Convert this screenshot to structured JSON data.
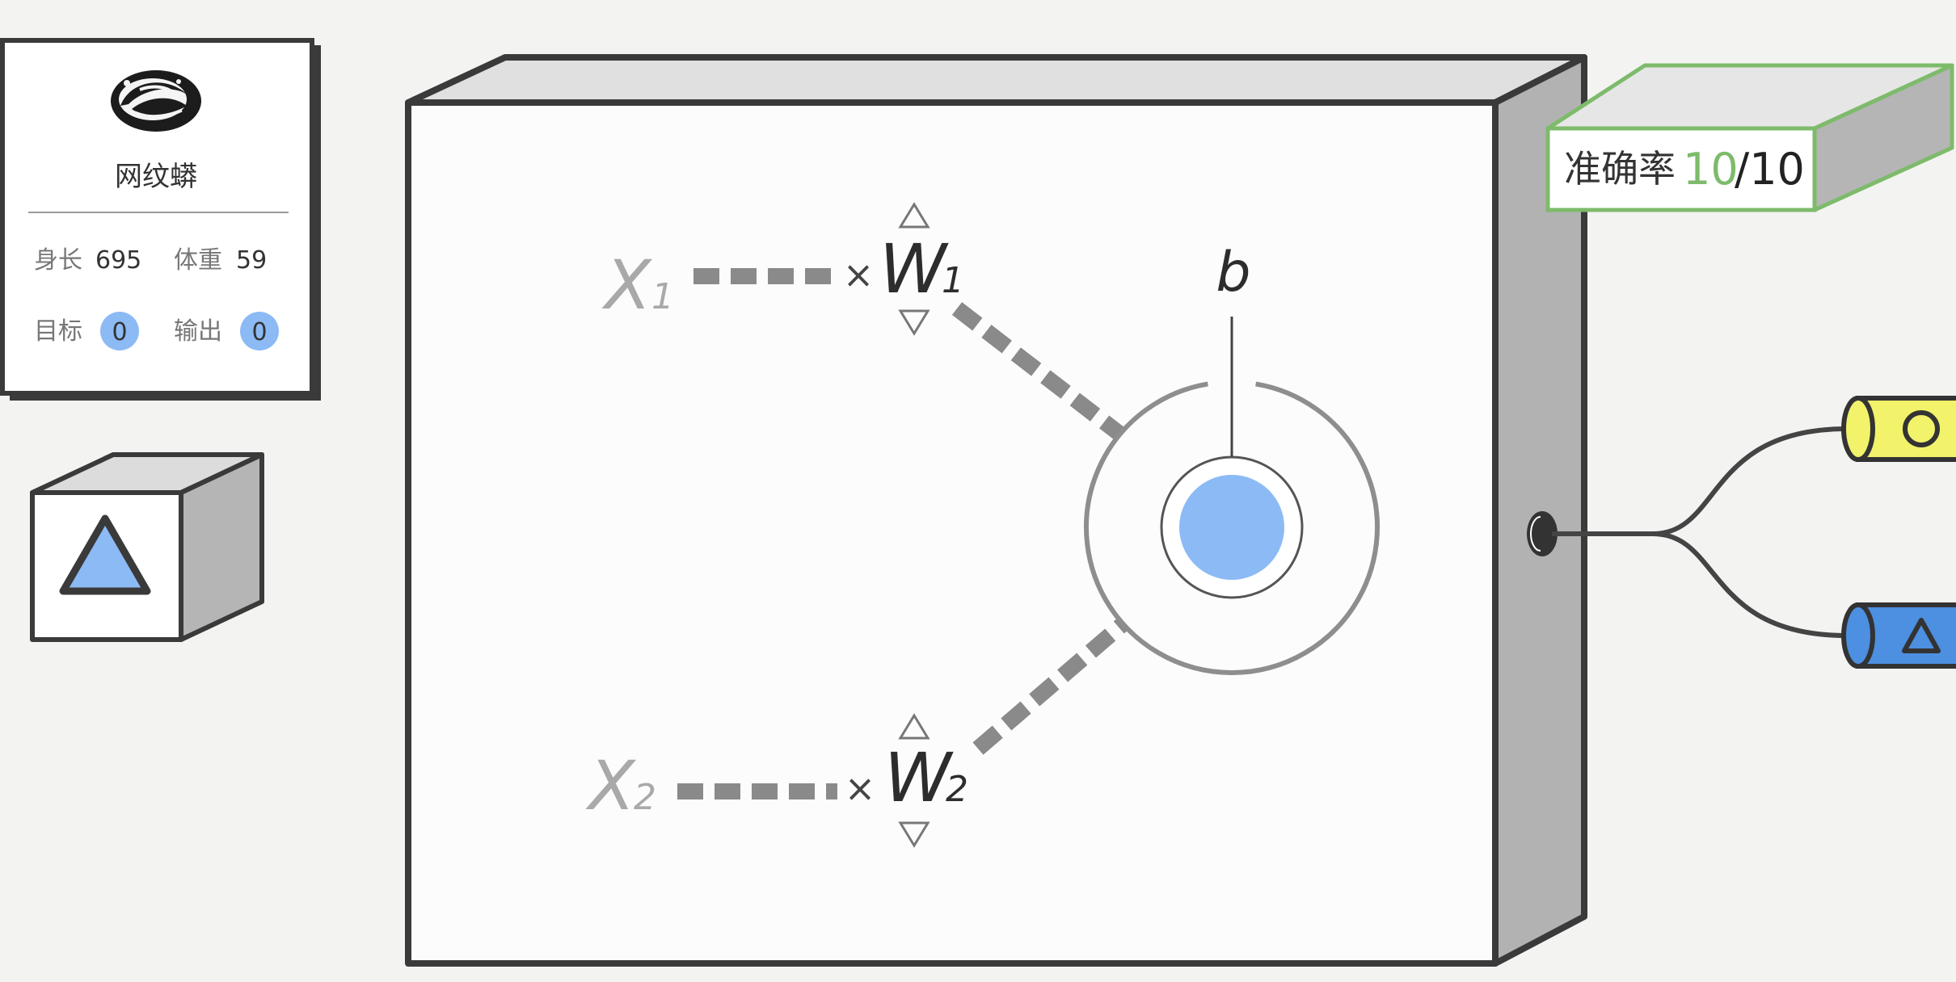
{
  "info_card": {
    "species_name": "网纹蟒",
    "length_label": "身长",
    "length_value": "695",
    "weight_label": "体重",
    "weight_value": "59",
    "target_label": "目标",
    "target_value": "0",
    "output_label": "输出",
    "output_value": "0",
    "badge_color": "#8cbaf5",
    "snake_icon": "snake-illustration"
  },
  "sample_cube": {
    "shape": "triangle",
    "fill_color": "#8cbaf5"
  },
  "neuron": {
    "x1_label": "X",
    "x1_sub": "1",
    "x2_label": "X",
    "x2_sub": "2",
    "w1_label": "W",
    "w1_sub": "1",
    "w2_label": "W",
    "w2_sub": "2",
    "times_symbol": "×",
    "bias_label": "b",
    "core_color": "#8cbaf5",
    "up_arrow_icon": "triangle-up-icon",
    "down_arrow_icon": "triangle-down-icon"
  },
  "accuracy": {
    "label": "准确率",
    "correct": "10",
    "slash_total": "/10",
    "accent_color": "#7dbb6b"
  },
  "outputs": {
    "circle_class_color": "#f2f26b",
    "triangle_class_color": "#4d8fe0"
  }
}
